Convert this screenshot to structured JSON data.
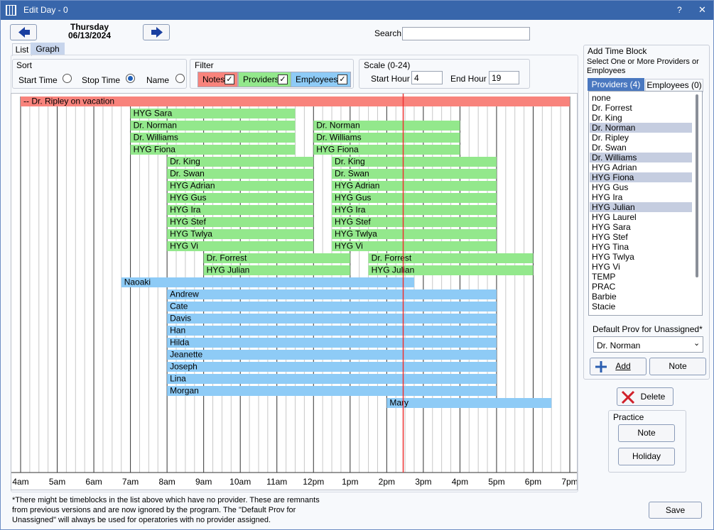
{
  "window": {
    "title": "Edit Day - 0",
    "help": "?",
    "close": "✕"
  },
  "header": {
    "weekday": "Thursday",
    "date": "06/13/2024",
    "search_label": "Search"
  },
  "tabs": [
    "List",
    "Graph"
  ],
  "sort": {
    "title": "Sort",
    "options": [
      {
        "label": "Start Time",
        "checked": false
      },
      {
        "label": "Stop Time",
        "checked": true
      },
      {
        "label": "Name",
        "checked": false
      }
    ]
  },
  "filter": {
    "title": "Filter",
    "options": [
      {
        "label": "Notes",
        "checked": true,
        "color": "#f8837c"
      },
      {
        "label": "Providers",
        "checked": true,
        "color": "#93e88c"
      },
      {
        "label": "Employees",
        "checked": true,
        "color": "#8ecbf6"
      }
    ]
  },
  "scale": {
    "title": "Scale (0-24)",
    "start_label": "Start Hour",
    "start": 4,
    "end_label": "End Hour",
    "end": 19
  },
  "graph": {
    "ticks": [
      {
        "value": 4,
        "label": "4am"
      },
      {
        "value": 5,
        "label": "5am"
      },
      {
        "value": 6,
        "label": "6am"
      },
      {
        "value": 7,
        "label": "7am"
      },
      {
        "value": 8,
        "label": "8am"
      },
      {
        "value": 9,
        "label": "9am"
      },
      {
        "value": 10,
        "label": "10am"
      },
      {
        "value": 11,
        "label": "11am"
      },
      {
        "value": 12,
        "label": "12pm"
      },
      {
        "value": 13,
        "label": "1pm"
      },
      {
        "value": 14,
        "label": "2pm"
      },
      {
        "value": 15,
        "label": "3pm"
      },
      {
        "value": 16,
        "label": "4pm"
      },
      {
        "value": 17,
        "label": "5pm"
      },
      {
        "value": 18,
        "label": "6pm"
      },
      {
        "value": 19,
        "label": "7pm"
      }
    ],
    "now": 14.45,
    "rows": [
      [
        {
          "label": "-- Dr. Ripley on vacation",
          "start": 4,
          "end": 19,
          "color": "#f8837c"
        }
      ],
      [
        {
          "label": "HYG Sara",
          "start": 7,
          "end": 11.5,
          "color": "#93e88c"
        }
      ],
      [
        {
          "label": "Dr. Norman",
          "start": 7,
          "end": 11.5,
          "color": "#93e88c"
        },
        {
          "label": "Dr. Norman",
          "start": 12,
          "end": 16,
          "color": "#93e88c"
        }
      ],
      [
        {
          "label": "Dr. Williams",
          "start": 7,
          "end": 11.5,
          "color": "#93e88c"
        },
        {
          "label": "Dr. Williams",
          "start": 12,
          "end": 16,
          "color": "#93e88c"
        }
      ],
      [
        {
          "label": "HYG Fiona",
          "start": 7,
          "end": 11.5,
          "color": "#93e88c"
        },
        {
          "label": "HYG Fiona",
          "start": 12,
          "end": 16,
          "color": "#93e88c"
        }
      ],
      [
        {
          "label": "Dr. King",
          "start": 8,
          "end": 12,
          "color": "#93e88c"
        },
        {
          "label": "Dr. King",
          "start": 12.5,
          "end": 17,
          "color": "#93e88c"
        }
      ],
      [
        {
          "label": "Dr. Swan",
          "start": 8,
          "end": 12,
          "color": "#93e88c"
        },
        {
          "label": "Dr. Swan",
          "start": 12.5,
          "end": 17,
          "color": "#93e88c"
        }
      ],
      [
        {
          "label": "HYG Adrian",
          "start": 8,
          "end": 12,
          "color": "#93e88c"
        },
        {
          "label": "HYG Adrian",
          "start": 12.5,
          "end": 17,
          "color": "#93e88c"
        }
      ],
      [
        {
          "label": "HYG Gus",
          "start": 8,
          "end": 12,
          "color": "#93e88c"
        },
        {
          "label": "HYG Gus",
          "start": 12.5,
          "end": 17,
          "color": "#93e88c"
        }
      ],
      [
        {
          "label": "HYG Ira",
          "start": 8,
          "end": 12,
          "color": "#93e88c"
        },
        {
          "label": "HYG Ira",
          "start": 12.5,
          "end": 17,
          "color": "#93e88c"
        }
      ],
      [
        {
          "label": "HYG Stef",
          "start": 8,
          "end": 12,
          "color": "#93e88c"
        },
        {
          "label": "HYG Stef",
          "start": 12.5,
          "end": 17,
          "color": "#93e88c"
        }
      ],
      [
        {
          "label": "HYG Twlya",
          "start": 8,
          "end": 12,
          "color": "#93e88c"
        },
        {
          "label": "HYG Twlya",
          "start": 12.5,
          "end": 17,
          "color": "#93e88c"
        }
      ],
      [
        {
          "label": "HYG Vi",
          "start": 8,
          "end": 12,
          "color": "#93e88c"
        },
        {
          "label": "HYG Vi",
          "start": 12.5,
          "end": 17,
          "color": "#93e88c"
        }
      ],
      [
        {
          "label": "Dr. Forrest",
          "start": 9,
          "end": 13,
          "color": "#93e88c"
        },
        {
          "label": "Dr. Forrest",
          "start": 13.5,
          "end": 18,
          "color": "#93e88c"
        }
      ],
      [
        {
          "label": "HYG Julian",
          "start": 9,
          "end": 13,
          "color": "#93e88c"
        },
        {
          "label": "HYG Julian",
          "start": 13.5,
          "end": 18,
          "color": "#93e88c"
        }
      ],
      [
        {
          "label": "Naoaki",
          "start": 6.75,
          "end": 14.75,
          "color": "#8ecbf6"
        }
      ],
      [
        {
          "label": "Andrew",
          "start": 8,
          "end": 17,
          "color": "#8ecbf6"
        }
      ],
      [
        {
          "label": "Cate",
          "start": 8,
          "end": 17,
          "color": "#8ecbf6"
        }
      ],
      [
        {
          "label": "Davis",
          "start": 8,
          "end": 17,
          "color": "#8ecbf6"
        }
      ],
      [
        {
          "label": "Han",
          "start": 8,
          "end": 17,
          "color": "#8ecbf6"
        }
      ],
      [
        {
          "label": "Hilda",
          "start": 8,
          "end": 17,
          "color": "#8ecbf6"
        }
      ],
      [
        {
          "label": "Jeanette",
          "start": 8,
          "end": 17,
          "color": "#8ecbf6"
        }
      ],
      [
        {
          "label": "Joseph",
          "start": 8,
          "end": 17,
          "color": "#8ecbf6"
        }
      ],
      [
        {
          "label": "Lina",
          "start": 8,
          "end": 17,
          "color": "#8ecbf6"
        }
      ],
      [
        {
          "label": "Morgan",
          "start": 8,
          "end": 17,
          "color": "#8ecbf6"
        }
      ],
      [
        {
          "label": "Mary",
          "start": 14,
          "end": 18.5,
          "color": "#8ecbf6"
        }
      ]
    ]
  },
  "footer": {
    "note": [
      "*There might be timeblocks in the list above which have no provider.  These are remnants",
      "from previous versions and are now ignored by the program.  The \"Default Prov for",
      "Unassigned\" will always be used for operatories with no provider assigned."
    ],
    "save": "Save"
  },
  "side": {
    "title": "Add Time Block",
    "instruction": "Select One or More Providers or Employees",
    "tabs": [
      "Providers (4)",
      "Employees (0)"
    ],
    "list": [
      {
        "label": "none",
        "selected": false
      },
      {
        "label": "Dr. Forrest",
        "selected": false
      },
      {
        "label": "Dr. King",
        "selected": false
      },
      {
        "label": "Dr. Norman",
        "selected": true
      },
      {
        "label": "Dr. Ripley",
        "selected": false
      },
      {
        "label": "Dr. Swan",
        "selected": false
      },
      {
        "label": "Dr. Williams",
        "selected": true
      },
      {
        "label": "HYG Adrian",
        "selected": false
      },
      {
        "label": "HYG Fiona",
        "selected": true
      },
      {
        "label": "HYG Gus",
        "selected": false
      },
      {
        "label": "HYG Ira",
        "selected": false
      },
      {
        "label": "HYG Julian",
        "selected": true
      },
      {
        "label": "HYG Laurel",
        "selected": false
      },
      {
        "label": "HYG Sara",
        "selected": false
      },
      {
        "label": "HYG Stef",
        "selected": false
      },
      {
        "label": "HYG Tina",
        "selected": false
      },
      {
        "label": "HYG Twlya",
        "selected": false
      },
      {
        "label": "HYG Vi",
        "selected": false
      },
      {
        "label": "TEMP",
        "selected": false
      },
      {
        "label": "PRAC",
        "selected": false
      },
      {
        "label": "Barbie",
        "selected": false
      },
      {
        "label": "Stacie",
        "selected": false
      }
    ],
    "default_label": "Default Prov for Unassigned*",
    "default_value": "Dr. Norman",
    "add": "Add",
    "note": "Note",
    "delete": "Delete",
    "practice": {
      "title": "Practice",
      "note": "Note",
      "holiday": "Holiday"
    }
  }
}
